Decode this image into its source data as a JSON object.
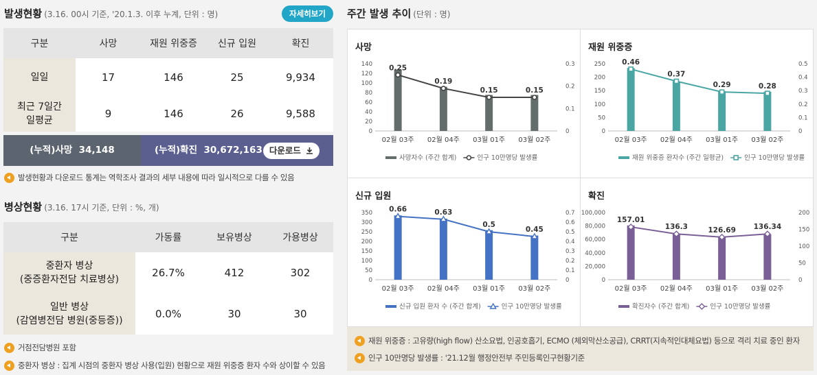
{
  "status": {
    "title": "발생현황",
    "subtitle": "(3.16. 00시 기준, '20.1.3. 이후 누계, 단위 : 명)",
    "detail_button": "자세히보기",
    "headers": [
      "구분",
      "사망",
      "재원 위중증",
      "신규 입원",
      "확진"
    ],
    "rows": [
      {
        "label": "일일",
        "values": [
          "17",
          "146",
          "25",
          "9,934"
        ]
      },
      {
        "label": "최근 7일간\n일평균",
        "values": [
          "9",
          "146",
          "26",
          "9,588"
        ]
      }
    ],
    "cum_death_label": "(누적)사망",
    "cum_death_value": "34,148",
    "cum_confirmed_label": "(누적)확진",
    "cum_confirmed_value": "30,672,163",
    "download_label": "다운로드",
    "note": "발생현황과 다운로드 통계는 역학조사 결과의 세부 내용에 따라 일시적으로 다를 수 있음"
  },
  "beds": {
    "title": "병상현황",
    "subtitle": "(3.16. 17시 기준, 단위 : %, 개)",
    "headers": [
      "구분",
      "가동률",
      "보유병상",
      "가용병상"
    ],
    "rows": [
      {
        "label": "중환자 병상\n(중증환자전담 치료병상)",
        "values": [
          "26.7%",
          "412",
          "302"
        ]
      },
      {
        "label": "일반 병상\n(감염병전담 병원(중등증))",
        "values": [
          "0.0%",
          "30",
          "30"
        ]
      }
    ],
    "notes": [
      "거점전담병원 포함",
      "중환자 병상 : 집계 시점의 중환자 병상 사용(입원) 현황으로 재원 위중증 환자 수와 상이할 수 있음"
    ]
  },
  "weekly": {
    "title": "주간 발생 추이",
    "subtitle": "(단위 : 명)",
    "footnotes": [
      "재원 위중증 : 고유량(high flow) 산소요법, 인공호흡기, ECMO (체외막산소공급), CRRT(지속적인대체요법) 등으로 격리 치료 중인 환자",
      "인구 10만명당 발생률 : '21.12월 행정안전부 주민등록인구현황기준"
    ]
  },
  "chart_data": [
    {
      "type": "bar",
      "title": "사망",
      "categories": [
        "02월 03주",
        "02월 04주",
        "03월 01주",
        "03월 02주"
      ],
      "series": [
        {
          "name": "사망자수 (주간 합계)",
          "values": [
            128,
            92,
            75,
            75
          ]
        },
        {
          "name": "인구 10만명당 발생률",
          "values": [
            0.25,
            0.19,
            0.15,
            0.15
          ],
          "labels": [
            "0.25",
            "0.19",
            "0.15",
            "0.15"
          ]
        }
      ],
      "ylim": [
        0,
        140
      ],
      "yticks": [
        "0",
        "20",
        "40",
        "60",
        "80",
        "100",
        "120",
        "140"
      ],
      "y2lim": [
        0,
        0.3
      ],
      "y2ticks": [
        "0",
        "0.1",
        "0.2",
        "0.3"
      ],
      "bar_color": "#636e6c",
      "line_color": "#444444",
      "marker": "circle"
    },
    {
      "type": "bar",
      "title": "재원 위중증",
      "categories": [
        "02월 03주",
        "02월 04주",
        "03월 01주",
        "03월 02주"
      ],
      "series": [
        {
          "name": "재원 위중증 환자수 (주간 일평균)",
          "values": [
            234,
            185,
            148,
            146
          ]
        },
        {
          "name": "인구 10만명당 발생률",
          "values": [
            0.46,
            0.37,
            0.29,
            0.28
          ],
          "labels": [
            "0.46",
            "0.37",
            "0.29",
            "0.28"
          ]
        }
      ],
      "ylim": [
        0,
        250
      ],
      "yticks": [
        "0",
        "50",
        "100",
        "150",
        "200",
        "250"
      ],
      "y2lim": [
        0,
        0.5
      ],
      "y2ticks": [
        "0",
        "0.1",
        "0.2",
        "0.3",
        "0.4",
        "0.5"
      ],
      "bar_color": "#4aa6a2",
      "line_color": "#4aa6a2",
      "marker": "square"
    },
    {
      "type": "bar",
      "title": "신규 입원",
      "categories": [
        "02월 03주",
        "02월 04주",
        "03월 01주",
        "03월 02주"
      ],
      "series": [
        {
          "name": "신규 입원 환자 수 (주간 합계)",
          "values": [
            335,
            318,
            258,
            230
          ]
        },
        {
          "name": "인구 10만명당 발생률",
          "values": [
            0.66,
            0.63,
            0.5,
            0.45
          ],
          "labels": [
            "0.66",
            "0.63",
            "0.5",
            "0.45"
          ]
        }
      ],
      "ylim": [
        0,
        350
      ],
      "yticks": [
        "0",
        "50",
        "100",
        "150",
        "200",
        "250",
        "300",
        "350"
      ],
      "y2lim": [
        0,
        0.7
      ],
      "y2ticks": [
        "0",
        "0.1",
        "0.2",
        "0.3",
        "0.4",
        "0.5",
        "0.6",
        "0.7"
      ],
      "bar_color": "#4472c4",
      "line_color": "#4472c4",
      "marker": "triangle"
    },
    {
      "type": "bar",
      "title": "확진",
      "categories": [
        "02월 03주",
        "02월 04주",
        "03월 01주",
        "03월 02주"
      ],
      "series": [
        {
          "name": "확진자수 (주간 합계)",
          "values": [
            80800,
            68500,
            64000,
            67600
          ]
        },
        {
          "name": "인구 10만명당 발생률",
          "values": [
            157.01,
            136.3,
            126.69,
            136.34
          ],
          "labels": [
            "157.01",
            "136.3",
            "126.69",
            "136.34"
          ]
        }
      ],
      "ylim": [
        0,
        100000
      ],
      "yticks": [
        "0",
        "20,000",
        "40,000",
        "60,000",
        "80,000",
        "100,000"
      ],
      "y2lim": [
        0,
        200
      ],
      "y2ticks": [
        "0",
        "50",
        "100",
        "150",
        "200"
      ],
      "bar_color": "#7a5f96",
      "line_color": "#7a5f96",
      "marker": "diamond"
    }
  ]
}
